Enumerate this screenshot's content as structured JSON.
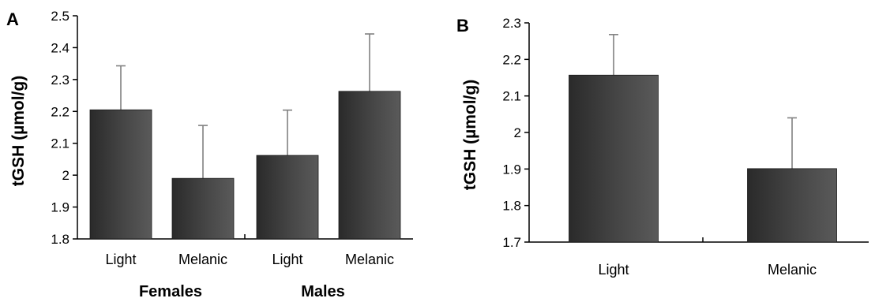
{
  "chart_data": [
    {
      "panel_label": "A",
      "type": "bar",
      "ylabel": "tGSH (µmol/g)",
      "ylim": [
        1.8,
        2.5
      ],
      "yticks": [
        "1.8",
        "1.9",
        "2",
        "2.1",
        "2.2",
        "2.3",
        "2.4",
        "2.5"
      ],
      "categories": [
        "Light",
        "Melanic",
        "Light",
        "Melanic"
      ],
      "groups": [
        "Females",
        "Males"
      ],
      "values": [
        2.205,
        1.99,
        2.062,
        2.263
      ],
      "error_upper": [
        2.343,
        2.156,
        2.204,
        2.443
      ],
      "grid": false,
      "bar_color": "#3d3d3d"
    },
    {
      "panel_label": "B",
      "type": "bar",
      "ylabel": "tGSH (µmol/g)",
      "ylim": [
        1.7,
        2.3
      ],
      "yticks": [
        "1.7",
        "1.8",
        "1.9",
        "2",
        "2.1",
        "2.2",
        "2.3"
      ],
      "categories": [
        "Light",
        "Melanic"
      ],
      "values": [
        2.157,
        1.901
      ],
      "error_upper": [
        2.268,
        2.04
      ],
      "grid": false,
      "bar_color": "#3d3d3d"
    }
  ]
}
